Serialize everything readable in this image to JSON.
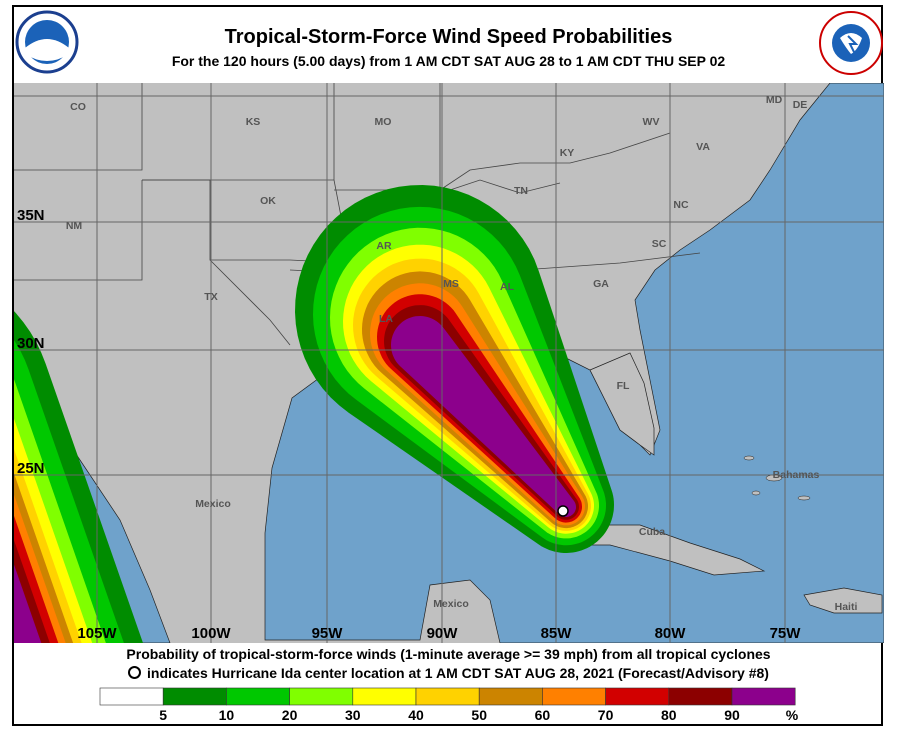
{
  "header": {
    "title": "Tropical-Storm-Force Wind Speed Probabilities",
    "subtitle": "For the 120 hours (5.00 days) from 1 AM CDT SAT AUG 28 to 1 AM CDT THU SEP 02",
    "left_logo": "NOAA",
    "right_logo": "NATIONAL WEATHER SERVICE"
  },
  "map": {
    "colors": {
      "land": "#c0c0c0",
      "water": "#6fa2cb",
      "border": "#555555",
      "grid": "#666666",
      "storm_center": "#ffffff"
    },
    "lon_labels": [
      "105W",
      "100W",
      "95W",
      "90W",
      "85W",
      "80W",
      "75W"
    ],
    "lat_labels": [
      "35N",
      "30N",
      "25N"
    ],
    "region_labels": [
      "CO",
      "KS",
      "MO",
      "KY",
      "WV",
      "VA",
      "MD",
      "DE",
      "NM",
      "OK",
      "AR",
      "TN",
      "NC",
      "SC",
      "GA",
      "AL",
      "MS",
      "LA",
      "TX",
      "FL",
      "Mexico",
      "Mexico",
      "Cuba",
      "Bahamas",
      "Haiti"
    ],
    "storm_center_icon": "open-circle-icon"
  },
  "caption": {
    "line1": "Probability of tropical-storm-force winds (1-minute average >= 39 mph) from all tropical cyclones",
    "line2": "indicates Hurricane Ida center location at 1 AM CDT SAT AUG 28, 2021 (Forecast/Advisory #8)"
  },
  "legend": {
    "colors": [
      "#ffffff",
      "#008c00",
      "#00c800",
      "#80ff00",
      "#ffff00",
      "#ffd200",
      "#cc8400",
      "#ff8000",
      "#d20000",
      "#8c0000",
      "#8c008c"
    ],
    "ticks": [
      "5",
      "10",
      "20",
      "30",
      "40",
      "50",
      "60",
      "70",
      "80",
      "90"
    ],
    "unit": "%"
  }
}
